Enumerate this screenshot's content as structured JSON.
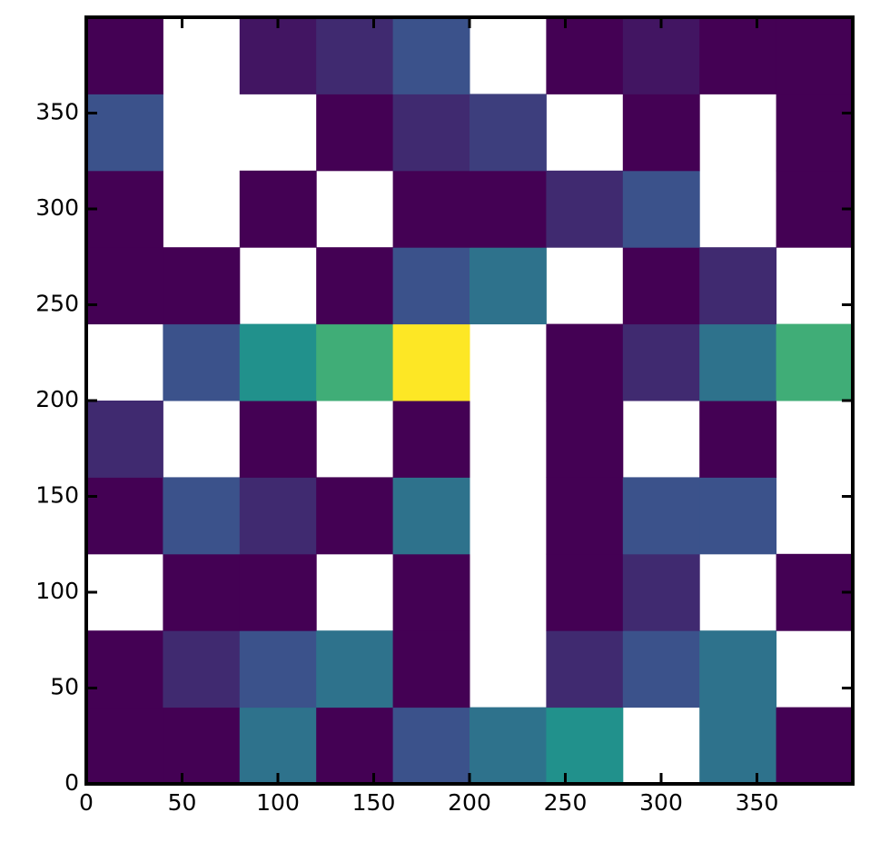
{
  "chart_data": {
    "type": "heatmap",
    "colormap": "viridis",
    "xlim": [
      0,
      400
    ],
    "ylim": [
      0,
      400
    ],
    "xticks": [
      0,
      50,
      100,
      150,
      200,
      250,
      300,
      350
    ],
    "yticks": [
      0,
      50,
      100,
      150,
      200,
      250,
      300,
      350
    ],
    "z": [
      [
        0.1,
        0.1,
        0.4,
        0.1,
        0.3,
        0.4,
        0.5,
        null,
        0.4,
        0.1
      ],
      [
        0.1,
        0.2,
        0.3,
        0.4,
        0.1,
        null,
        0.2,
        0.3,
        0.4,
        null
      ],
      [
        null,
        0.1,
        0.1,
        null,
        0.1,
        null,
        0.1,
        0.2,
        null,
        0.1
      ],
      [
        0.1,
        0.3,
        0.2,
        0.1,
        0.4,
        null,
        0.1,
        0.3,
        0.3,
        null
      ],
      [
        0.2,
        null,
        0.1,
        null,
        0.1,
        null,
        0.1,
        null,
        0.1,
        null
      ],
      [
        null,
        0.3,
        0.5,
        0.6,
        0.9,
        null,
        0.1,
        0.2,
        0.4,
        0.6
      ],
      [
        0.1,
        0.1,
        null,
        0.1,
        0.3,
        0.4,
        null,
        0.1,
        0.2,
        null
      ],
      [
        0.1,
        null,
        0.1,
        null,
        0.1,
        0.1,
        0.2,
        0.3,
        null,
        0.1
      ],
      [
        0.3,
        null,
        null,
        0.1,
        0.2,
        0.25,
        null,
        0.1,
        null,
        0.1
      ],
      [
        0.1,
        null,
        0.15,
        0.2,
        0.3,
        null,
        0.1,
        0.15,
        0.1,
        0.1
      ]
    ]
  }
}
